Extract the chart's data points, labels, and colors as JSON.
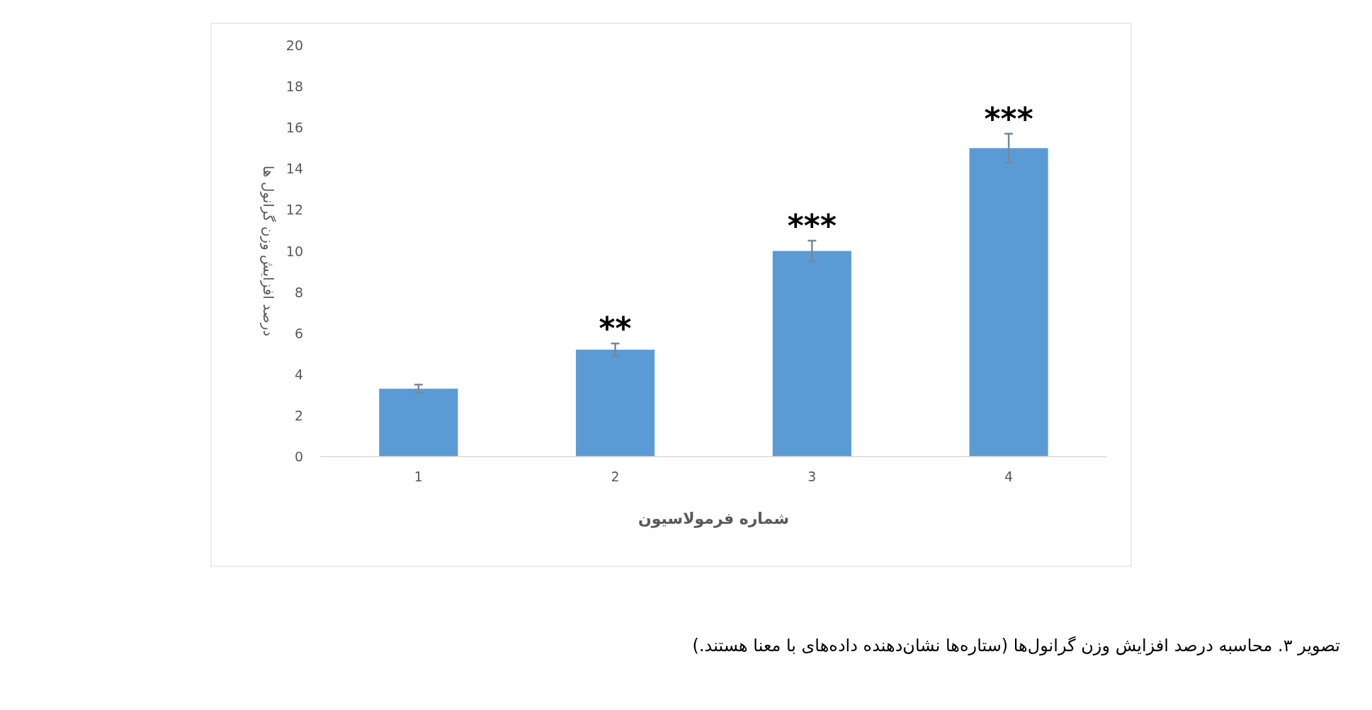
{
  "chart_data": {
    "type": "bar",
    "categories": [
      "1",
      "2",
      "3",
      "4"
    ],
    "values": [
      3.3,
      5.2,
      10.0,
      15.0
    ],
    "errors": [
      0.2,
      0.3,
      0.5,
      0.7
    ],
    "color": "#5b9bd5",
    "xlabel": "شماره فرمولاسیون",
    "ylabel": "درصد افزایش وزن گرانول ها",
    "ylim": [
      0,
      20
    ],
    "yticks": [
      0,
      2,
      4,
      6,
      8,
      10,
      12,
      14,
      16,
      18,
      20
    ],
    "grid": false,
    "annotations": [
      {
        "text": "**",
        "x": "2",
        "y": 5.5
      },
      {
        "text": "***",
        "x": "3",
        "y": 10.5
      },
      {
        "text": "***",
        "x": "4",
        "y": 15.7
      },
      "تصویر ۳. محاسبه درصد افزایش وزن گرانول‌ها (ستاره‌ها نشان‌دهنده داده‌های با معنا هستند.)"
    ]
  }
}
